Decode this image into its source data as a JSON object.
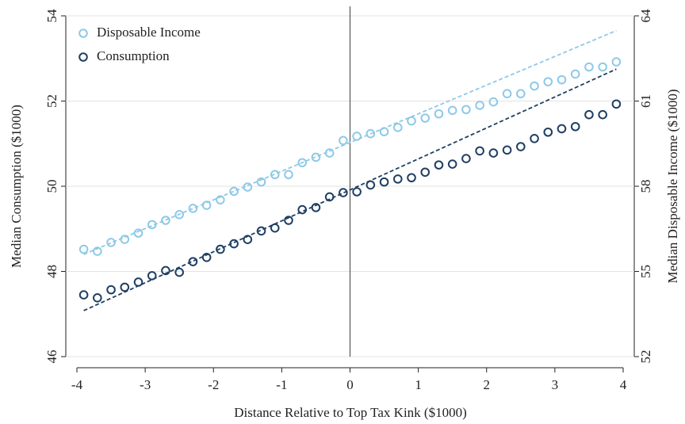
{
  "chart_data": {
    "type": "scatter",
    "xlabel": "Distance Relative to Top Tax Kink ($1000)",
    "ylabel": "Median Consumption ($1000)",
    "y2label": "Median Disposable Income ($1000)",
    "xlim": [
      -4,
      4
    ],
    "xticks": [
      -4,
      -3,
      -2,
      -1,
      0,
      1,
      2,
      3,
      4
    ],
    "ylim": [
      46,
      54
    ],
    "yticks": [
      46,
      48,
      50,
      52,
      54
    ],
    "y2lim": [
      52,
      64
    ],
    "y2ticks": [
      52,
      55,
      58,
      61,
      64
    ],
    "grid": true,
    "legend": "upper-left",
    "vline": 0,
    "x": [
      -3.9,
      -3.7,
      -3.5,
      -3.3,
      -3.1,
      -2.9,
      -2.7,
      -2.5,
      -2.3,
      -2.1,
      -1.9,
      -1.7,
      -1.5,
      -1.3,
      -1.1,
      -0.9,
      -0.7,
      -0.5,
      -0.3,
      -0.1,
      0.1,
      0.3,
      0.5,
      0.7,
      0.9,
      1.1,
      1.3,
      1.5,
      1.7,
      1.9,
      2.1,
      2.3,
      2.5,
      2.7,
      2.9,
      3.1,
      3.3,
      3.5,
      3.7,
      3.9
    ],
    "series": [
      {
        "name": "Disposable Income",
        "color": "#8ec9e8",
        "axis": "y2",
        "values": [
          55.78,
          55.71,
          56.02,
          56.13,
          56.35,
          56.65,
          56.8,
          57.0,
          57.22,
          57.33,
          57.52,
          57.82,
          57.97,
          58.15,
          58.41,
          58.41,
          58.83,
          59.02,
          59.17,
          59.61,
          59.76,
          59.85,
          59.92,
          60.07,
          60.3,
          60.4,
          60.55,
          60.67,
          60.7,
          60.85,
          60.97,
          61.26,
          61.26,
          61.53,
          61.68,
          61.75,
          61.95,
          62.2,
          62.2,
          62.38
        ]
      },
      {
        "name": "Consumption",
        "color": "#1f3f63",
        "axis": "y",
        "values": [
          47.45,
          47.38,
          47.57,
          47.63,
          47.75,
          47.9,
          48.02,
          47.98,
          48.23,
          48.33,
          48.52,
          48.65,
          48.75,
          48.95,
          49.02,
          49.2,
          49.45,
          49.5,
          49.75,
          49.85,
          49.87,
          50.03,
          50.1,
          50.17,
          50.2,
          50.33,
          50.5,
          50.52,
          50.65,
          50.83,
          50.78,
          50.85,
          50.93,
          51.12,
          51.27,
          51.35,
          51.4,
          51.68,
          51.68,
          51.93
        ]
      }
    ],
    "fit_lines": [
      {
        "color": "#8ec9e8",
        "axis": "y2",
        "x": [
          -3.9,
          3.9
        ],
        "values": [
          55.6,
          63.48
        ]
      },
      {
        "color": "#1f3f63",
        "axis": "y",
        "x": [
          -3.9,
          3.9
        ],
        "values": [
          47.08,
          52.75
        ]
      }
    ]
  }
}
